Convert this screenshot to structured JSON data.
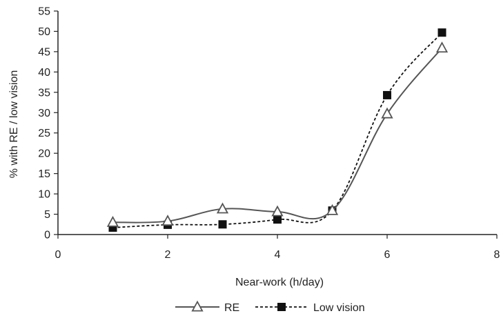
{
  "chart_data": {
    "type": "line",
    "title": "",
    "xlabel": "Near-work  (h/day)",
    "ylabel": "% with RE / low vision",
    "xlim": [
      0,
      8
    ],
    "ylim": [
      0,
      55
    ],
    "xticks": [
      0,
      2,
      4,
      6,
      8
    ],
    "yticks": [
      0,
      5,
      10,
      15,
      20,
      25,
      30,
      35,
      40,
      45,
      50,
      55
    ],
    "grid": false,
    "legend_position": "bottom",
    "series": [
      {
        "name": "RE",
        "marker": "open-triangle",
        "line_style": "solid",
        "color": "#555555",
        "x": [
          1,
          2,
          3,
          4,
          5,
          6,
          7
        ],
        "y": [
          3.0,
          3.3,
          6.3,
          5.6,
          5.9,
          29.7,
          45.9
        ]
      },
      {
        "name": "Low vision",
        "marker": "filled-square",
        "line_style": "dotted",
        "color": "#111111",
        "x": [
          1,
          2,
          3,
          4,
          5,
          6,
          7
        ],
        "y": [
          1.7,
          2.4,
          2.5,
          3.7,
          5.9,
          34.3,
          49.7
        ]
      }
    ]
  }
}
